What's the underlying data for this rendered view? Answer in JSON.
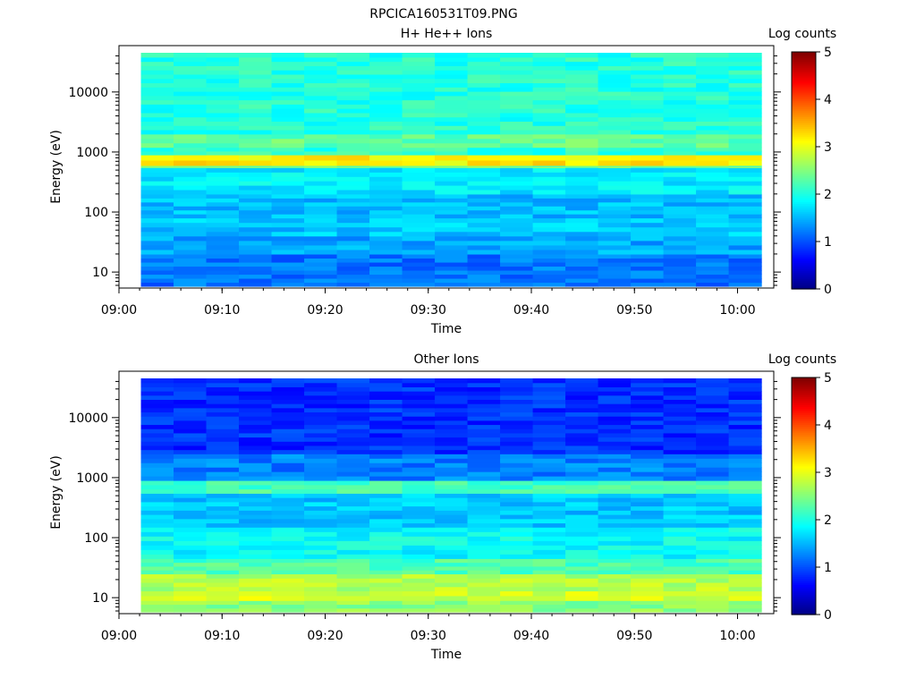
{
  "page": {
    "title": "RPCICA160531T09.PNG"
  },
  "colormap": "jet",
  "chart_data": [
    {
      "type": "heatmap",
      "title": "H+ He++ Ions",
      "xlabel": "Time",
      "ylabel": "Energy (eV)",
      "yscale": "log",
      "colorbar_label": "Log counts",
      "colorbar_range": [
        0,
        5
      ],
      "colorbar_ticks": [
        "0",
        "1",
        "2",
        "3",
        "4",
        "5"
      ],
      "xlim": [
        "09:01",
        "10:03"
      ],
      "ylim": [
        5.8,
        45000
      ],
      "x_ticks": [
        "09:00",
        "09:10",
        "09:20",
        "09:30",
        "09:40",
        "09:50",
        "10:00"
      ],
      "y_ticks": [
        "10",
        "100",
        "1000",
        "10000"
      ],
      "time_bins": 19,
      "bands": [
        {
          "energy_ev": [
            20,
            40
          ],
          "log_counts": 1.45
        },
        {
          "energy_ev": [
            40,
            80
          ],
          "log_counts": 1.6
        },
        {
          "energy_ev": [
            80,
            200
          ],
          "log_counts": 1.55
        },
        {
          "energy_ev": [
            200,
            550
          ],
          "log_counts": 1.8
        },
        {
          "energy_ev": [
            550,
            600
          ],
          "log_counts": 2.4
        },
        {
          "energy_ev": [
            600,
            900
          ],
          "log_counts": 3.2
        },
        {
          "energy_ev": [
            900,
            1200
          ],
          "log_counts": 2.1
        },
        {
          "energy_ev": [
            1200,
            2000
          ],
          "log_counts": 2.35
        },
        {
          "energy_ev": [
            2000,
            45000
          ],
          "log_counts": 2.05
        }
      ],
      "band_floor": {
        "energy_ev": [
          5.8,
          20
        ],
        "log_counts": 1.2
      }
    },
    {
      "type": "heatmap",
      "title": "Other Ions",
      "xlabel": "Time",
      "ylabel": "Energy (eV)",
      "yscale": "log",
      "colorbar_label": "Log counts",
      "colorbar_range": [
        0,
        5
      ],
      "colorbar_ticks": [
        "0",
        "1",
        "2",
        "3",
        "4",
        "5"
      ],
      "xlim": [
        "09:01",
        "10:03"
      ],
      "ylim": [
        5.8,
        45000
      ],
      "x_ticks": [
        "09:00",
        "09:10",
        "09:20",
        "09:30",
        "09:40",
        "09:50",
        "10:00"
      ],
      "y_ticks": [
        "10",
        "100",
        "1000",
        "10000"
      ],
      "time_bins": 19,
      "bands": [
        {
          "energy_ev": [
            5.8,
            9
          ],
          "log_counts": 2.55
        },
        {
          "energy_ev": [
            9,
            13
          ],
          "log_counts": 2.9
        },
        {
          "energy_ev": [
            13,
            25
          ],
          "log_counts": 2.75
        },
        {
          "energy_ev": [
            25,
            45
          ],
          "log_counts": 2.25
        },
        {
          "energy_ev": [
            45,
            150
          ],
          "log_counts": 1.9
        },
        {
          "energy_ev": [
            150,
            550
          ],
          "log_counts": 1.6
        },
        {
          "energy_ev": [
            550,
            900
          ],
          "log_counts": 2.2
        },
        {
          "energy_ev": [
            900,
            2500
          ],
          "log_counts": 1.25
        },
        {
          "energy_ev": [
            2500,
            45000
          ],
          "log_counts": 0.85
        }
      ]
    }
  ]
}
